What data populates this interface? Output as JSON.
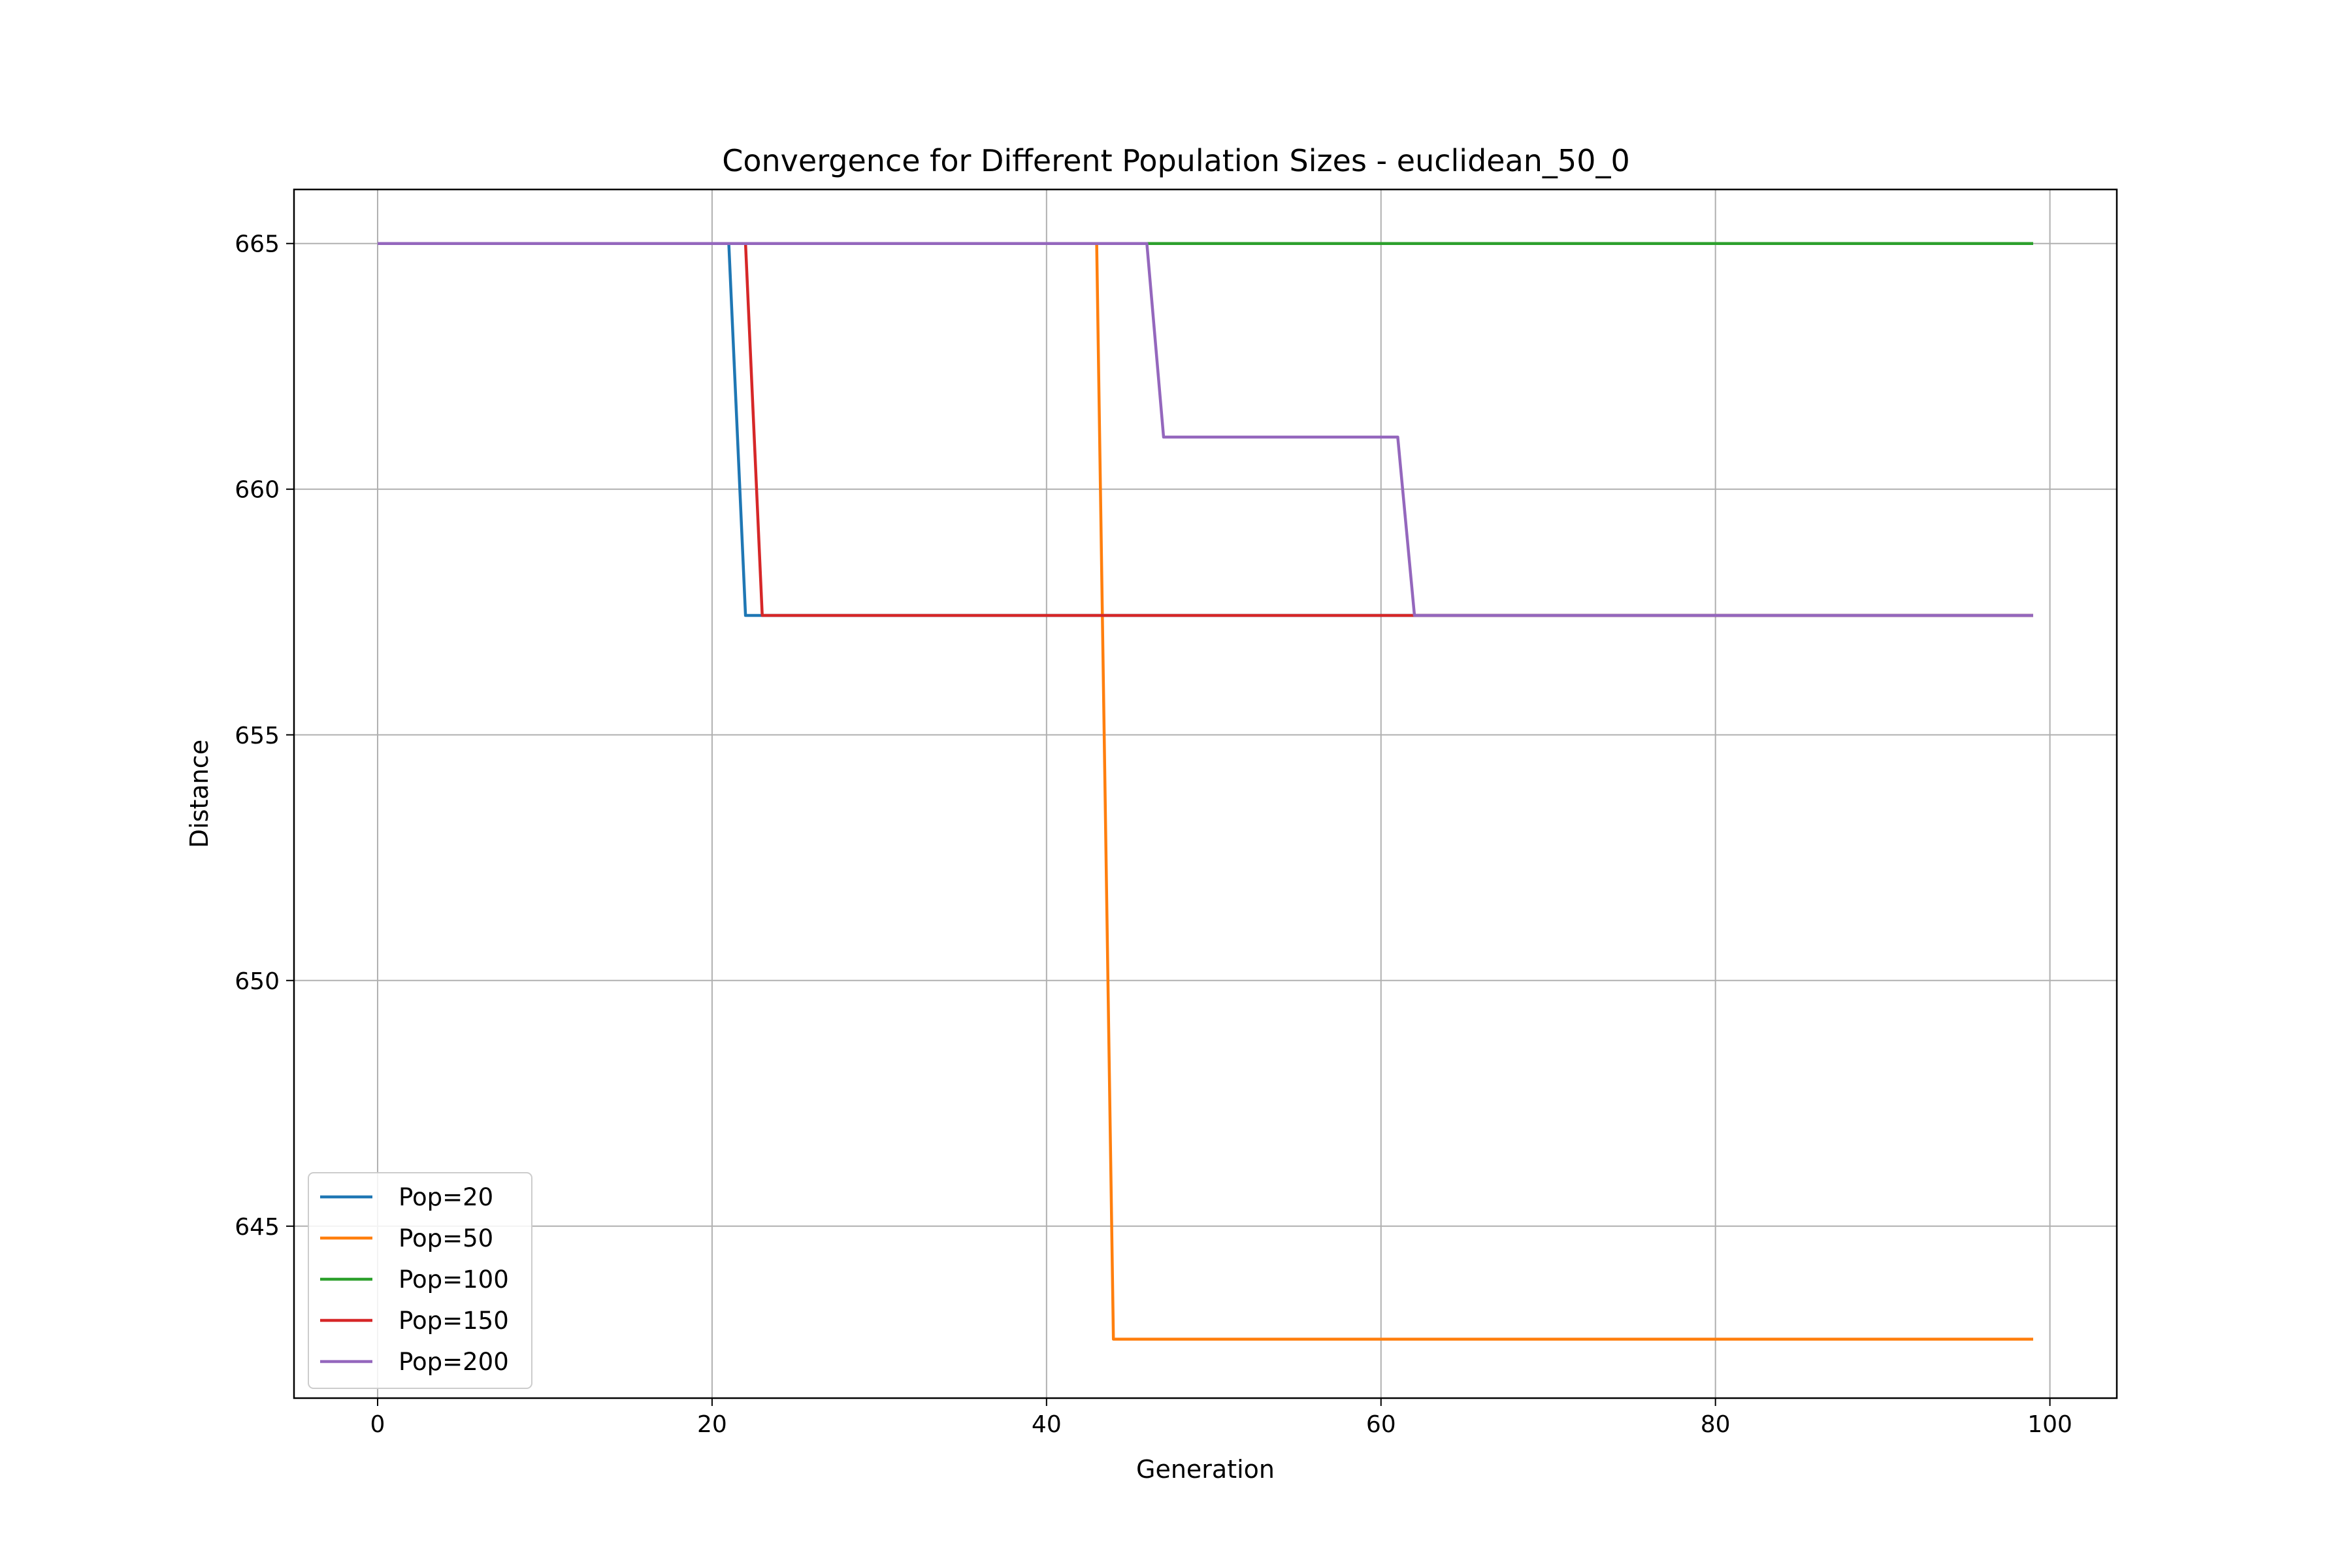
{
  "chart_data": {
    "type": "line",
    "title": "Convergence for Different Population Sizes - euclidean_50_0",
    "xlabel": "Generation",
    "ylabel": "Distance",
    "xlim": [
      -5,
      104
    ],
    "ylim": [
      641.5,
      666.1
    ],
    "xticks": [
      0,
      20,
      40,
      60,
      80,
      100
    ],
    "yticks": [
      645,
      650,
      655,
      660,
      665
    ],
    "grid": true,
    "legend_position": "lower-left",
    "series": [
      {
        "name": "Pop=20",
        "color": "#1f77b4",
        "points": [
          [
            0,
            665.0
          ],
          [
            21,
            665.0
          ],
          [
            22,
            657.43
          ],
          [
            99,
            657.43
          ]
        ]
      },
      {
        "name": "Pop=50",
        "color": "#ff7f0e",
        "points": [
          [
            0,
            665.0
          ],
          [
            43,
            665.0
          ],
          [
            44,
            642.7
          ],
          [
            99,
            642.7
          ]
        ]
      },
      {
        "name": "Pop=100",
        "color": "#2ca02c",
        "points": [
          [
            0,
            665.0
          ],
          [
            99,
            665.0
          ]
        ]
      },
      {
        "name": "Pop=150",
        "color": "#d62728",
        "points": [
          [
            0,
            665.0
          ],
          [
            22,
            665.0
          ],
          [
            23,
            657.43
          ],
          [
            99,
            657.43
          ]
        ]
      },
      {
        "name": "Pop=200",
        "color": "#9467bd",
        "points": [
          [
            0,
            665.0
          ],
          [
            46,
            665.0
          ],
          [
            47,
            661.06
          ],
          [
            61,
            661.06
          ],
          [
            62,
            657.43
          ],
          [
            99,
            657.43
          ]
        ]
      }
    ]
  }
}
